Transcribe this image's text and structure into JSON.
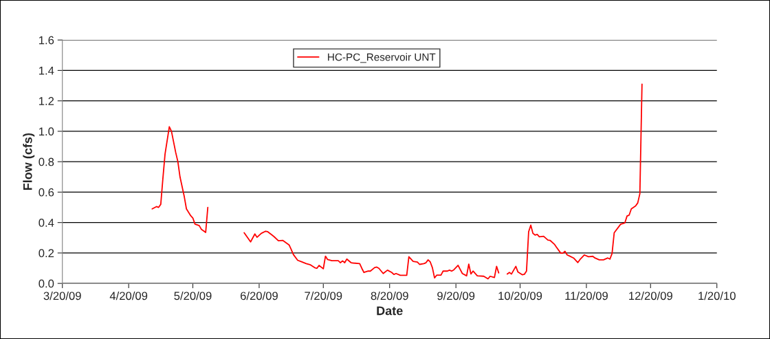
{
  "chart_data": {
    "type": "line",
    "xlabel": "Date",
    "ylabel": "Flow (cfs)",
    "series": [
      {
        "name": "HC-PC_Reservoir UNT",
        "color": "#ff0000",
        "x": [
          "2009-05-01",
          "2009-05-03",
          "2009-05-04",
          "2009-05-05",
          "2009-05-06",
          "2009-05-07",
          "2009-05-09",
          "2009-05-10",
          "2009-05-12",
          "2009-05-13",
          "2009-05-14",
          "2009-05-16",
          "2009-05-17",
          "2009-05-19",
          "2009-05-20",
          "2009-05-21",
          "2009-05-23",
          "2009-05-24",
          "2009-05-26",
          "2009-05-27",
          "2009-06-01",
          "2009-06-13",
          "2009-06-16",
          "2009-06-18",
          "2009-06-19",
          "2009-06-21",
          "2009-06-23",
          "2009-06-24",
          "2009-06-26",
          "2009-06-27",
          "2009-06-29",
          "2009-07-01",
          "2009-07-02",
          "2009-07-04",
          "2009-07-05",
          "2009-07-06",
          "2009-07-08",
          "2009-07-10",
          "2009-07-12",
          "2009-07-14",
          "2009-07-16",
          "2009-07-17",
          "2009-07-18",
          "2009-07-20",
          "2009-07-21",
          "2009-07-22",
          "2009-07-24",
          "2009-07-27",
          "2009-07-28",
          "2009-07-29",
          "2009-07-30",
          "2009-07-31",
          "2009-08-02",
          "2009-08-03",
          "2009-08-06",
          "2009-08-07",
          "2009-08-08",
          "2009-08-10",
          "2009-08-11",
          "2009-08-13",
          "2009-08-14",
          "2009-08-15",
          "2009-08-17",
          "2009-08-19",
          "2009-08-21",
          "2009-08-22",
          "2009-08-23",
          "2009-08-25",
          "2009-08-28",
          "2009-08-29",
          "2009-08-31",
          "2009-09-02",
          "2009-09-03",
          "2009-09-05",
          "2009-09-06",
          "2009-09-07",
          "2009-09-08",
          "2009-09-09",
          "2009-09-10",
          "2009-09-11",
          "2009-09-13",
          "2009-09-14",
          "2009-09-16",
          "2009-09-17",
          "2009-09-18",
          "2009-09-19",
          "2009-09-21",
          "2009-09-23",
          "2009-09-25",
          "2009-09-26",
          "2009-09-27",
          "2009-09-28",
          "2009-09-30",
          "2009-10-03",
          "2009-10-05",
          "2009-10-06",
          "2009-10-08",
          "2009-10-09",
          "2009-10-10",
          "2009-10-12",
          "2009-10-14",
          "2009-10-15",
          "2009-10-16",
          "2009-10-18",
          "2009-10-19",
          "2009-10-21",
          "2009-10-22",
          "2009-10-23",
          "2009-10-24",
          "2009-10-25",
          "2009-10-26",
          "2009-10-27",
          "2009-10-28",
          "2009-10-29",
          "2009-10-31",
          "2009-11-02",
          "2009-11-03",
          "2009-11-05",
          "2009-11-06",
          "2009-11-08",
          "2009-11-09",
          "2009-11-10",
          "2009-11-11",
          "2009-11-12",
          "2009-11-14",
          "2009-11-16",
          "2009-11-17",
          "2009-11-19",
          "2009-11-21",
          "2009-11-23",
          "2009-11-24",
          "2009-11-26",
          "2009-11-28",
          "2009-11-30",
          "2009-12-01",
          "2009-12-02",
          "2009-12-03",
          "2009-12-06",
          "2009-12-08",
          "2009-12-09",
          "2009-12-10",
          "2009-12-11",
          "2009-12-13",
          "2009-12-14",
          "2009-12-15",
          "2009-12-16"
        ],
        "values": [
          0.49,
          0.505,
          0.5,
          0.52,
          0.69,
          0.85,
          1.03,
          1.0,
          0.86,
          0.8,
          0.7,
          0.57,
          0.49,
          0.445,
          0.43,
          0.39,
          0.38,
          0.355,
          0.335,
          0.5,
          null,
          0.333,
          0.273,
          0.325,
          0.303,
          0.329,
          0.343,
          0.34,
          0.318,
          0.307,
          0.28,
          0.283,
          0.273,
          0.253,
          0.223,
          0.19,
          0.152,
          0.141,
          0.13,
          0.122,
          0.103,
          0.099,
          0.118,
          0.096,
          0.179,
          0.157,
          0.149,
          0.149,
          0.136,
          0.148,
          0.136,
          0.16,
          0.136,
          0.134,
          0.13,
          0.099,
          0.072,
          0.081,
          0.081,
          0.104,
          0.107,
          0.099,
          0.065,
          0.087,
          0.072,
          0.059,
          0.065,
          0.053,
          0.053,
          0.175,
          0.145,
          0.14,
          0.125,
          0.13,
          0.136,
          0.155,
          0.141,
          0.103,
          0.036,
          0.054,
          0.054,
          0.081,
          0.081,
          0.087,
          0.081,
          0.089,
          0.119,
          0.065,
          0.05,
          0.127,
          0.062,
          0.081,
          0.05,
          0.047,
          0.03,
          0.047,
          0.039,
          0.112,
          0.069,
          null,
          0.062,
          0.072,
          0.062,
          0.112,
          0.075,
          0.057,
          0.06,
          0.081,
          0.34,
          0.383,
          0.329,
          0.318,
          0.322,
          0.306,
          0.31,
          0.285,
          0.283,
          0.258,
          0.238,
          0.199,
          0.199,
          0.211,
          0.187,
          0.181,
          0.167,
          0.137,
          0.157,
          0.187,
          0.175,
          0.178,
          0.167,
          0.155,
          0.155,
          0.167,
          0.16,
          0.197,
          0.333,
          0.389,
          0.398,
          0.443,
          0.449,
          0.49,
          0.509,
          0.529,
          0.59,
          1.31
        ]
      }
    ],
    "xlim": [
      "2009-03-20",
      "2010-01-20"
    ],
    "xticks": [
      {
        "value": "2009-03-20",
        "label": "3/20/09"
      },
      {
        "value": "2009-04-20",
        "label": "4/20/09"
      },
      {
        "value": "2009-05-20",
        "label": "5/20/09"
      },
      {
        "value": "2009-06-20",
        "label": "6/20/09"
      },
      {
        "value": "2009-07-20",
        "label": "7/20/09"
      },
      {
        "value": "2009-08-20",
        "label": "8/20/09"
      },
      {
        "value": "2009-09-20",
        "label": "9/20/09"
      },
      {
        "value": "2009-10-20",
        "label": "10/20/09"
      },
      {
        "value": "2009-11-20",
        "label": "11/20/09"
      },
      {
        "value": "2009-12-20",
        "label": "12/20/09"
      },
      {
        "value": "2010-01-20",
        "label": "1/20/10"
      }
    ],
    "ylim": [
      0,
      1.6
    ],
    "yticks": [
      {
        "value": 0,
        "label": "0.0"
      },
      {
        "value": 0.2,
        "label": "0.2"
      },
      {
        "value": 0.4,
        "label": "0.4"
      },
      {
        "value": 0.6,
        "label": "0.6"
      },
      {
        "value": 0.8,
        "label": "0.8"
      },
      {
        "value": 1.0,
        "label": "1.0"
      },
      {
        "value": 1.2,
        "label": "1.2"
      },
      {
        "value": 1.4,
        "label": "1.4"
      },
      {
        "value": 1.6,
        "label": "1.6"
      }
    ],
    "grid": "y",
    "legend": "top",
    "marker": "none",
    "line_style": "solid"
  }
}
